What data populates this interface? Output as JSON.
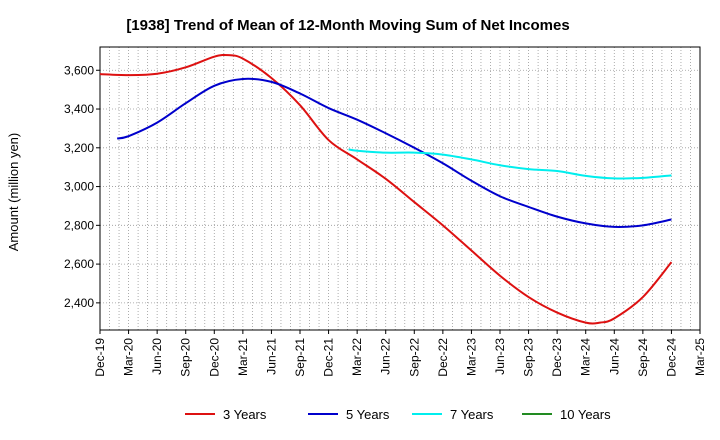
{
  "chart_data": {
    "type": "line",
    "title": "[1938]  Trend of Mean of 12-Month Moving Sum of Net Incomes",
    "xlabel": "",
    "ylabel": "Amount (million yen)",
    "ylim": [
      2260,
      3720
    ],
    "yticks": [
      2400,
      2600,
      2800,
      3000,
      3200,
      3400,
      3600
    ],
    "ytick_labels": [
      "2,400",
      "2,600",
      "2,800",
      "3,000",
      "3,200",
      "3,400",
      "3,600"
    ],
    "x_tick_labels": [
      "Dec-19",
      "Mar-20",
      "Jun-20",
      "Sep-20",
      "Dec-20",
      "Mar-21",
      "Jun-21",
      "Sep-21",
      "Dec-21",
      "Mar-22",
      "Jun-22",
      "Sep-22",
      "Dec-22",
      "Mar-23",
      "Jun-23",
      "Sep-23",
      "Dec-23",
      "Mar-24",
      "Jun-24",
      "Sep-24",
      "Dec-24",
      "Mar-25"
    ],
    "grid": true,
    "legend_position": "bottom",
    "series": [
      {
        "name": "3 Years",
        "color": "#dd1111",
        "points": [
          [
            0,
            3580
          ],
          [
            1,
            3575
          ],
          [
            2,
            3582
          ],
          [
            3,
            3615
          ],
          [
            4,
            3670
          ],
          [
            4.5,
            3678
          ],
          [
            5,
            3660
          ],
          [
            6,
            3560
          ],
          [
            7,
            3420
          ],
          [
            8,
            3240
          ],
          [
            9,
            3140
          ],
          [
            10,
            3040
          ],
          [
            11,
            2920
          ],
          [
            12,
            2800
          ],
          [
            13,
            2670
          ],
          [
            14,
            2540
          ],
          [
            15,
            2430
          ],
          [
            16,
            2350
          ],
          [
            17,
            2298
          ],
          [
            17.5,
            2298
          ],
          [
            18,
            2320
          ],
          [
            19,
            2430
          ],
          [
            20,
            2610
          ]
        ]
      },
      {
        "name": "5 Years",
        "color": "#0000cc",
        "points": [
          [
            0.6,
            3248
          ],
          [
            1,
            3260
          ],
          [
            2,
            3330
          ],
          [
            3,
            3430
          ],
          [
            4,
            3520
          ],
          [
            5,
            3555
          ],
          [
            6,
            3540
          ],
          [
            7,
            3480
          ],
          [
            8,
            3405
          ],
          [
            9,
            3345
          ],
          [
            10,
            3275
          ],
          [
            11,
            3200
          ],
          [
            12,
            3120
          ],
          [
            13,
            3030
          ],
          [
            14,
            2950
          ],
          [
            15,
            2895
          ],
          [
            16,
            2845
          ],
          [
            17,
            2810
          ],
          [
            18,
            2792
          ],
          [
            19,
            2800
          ],
          [
            20,
            2830
          ]
        ]
      },
      {
        "name": "7 Years",
        "color": "#00eeee",
        "points": [
          [
            8.7,
            3192
          ],
          [
            9,
            3185
          ],
          [
            10,
            3175
          ],
          [
            11,
            3175
          ],
          [
            12,
            3165
          ],
          [
            13,
            3140
          ],
          [
            14,
            3110
          ],
          [
            15,
            3090
          ],
          [
            16,
            3080
          ],
          [
            17,
            3055
          ],
          [
            18,
            3042
          ],
          [
            19,
            3045
          ],
          [
            20,
            3058
          ]
        ]
      },
      {
        "name": "10 Years",
        "color": "#228B22",
        "points": []
      }
    ]
  }
}
